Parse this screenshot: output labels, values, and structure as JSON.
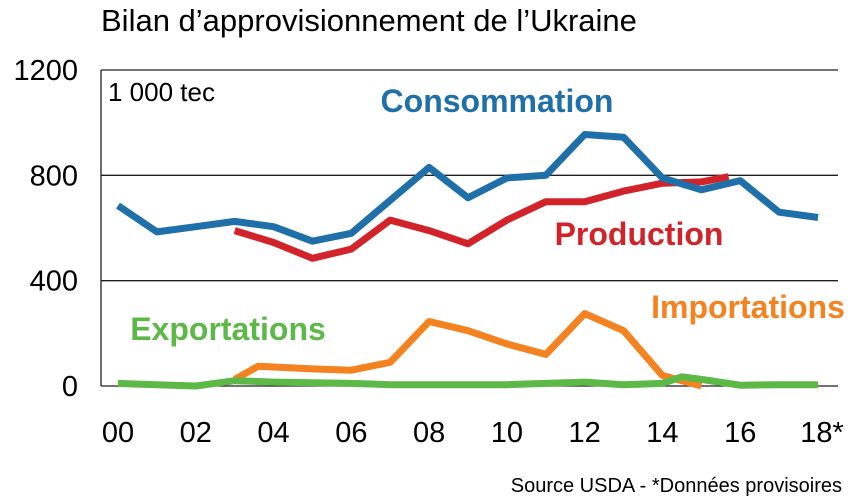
{
  "chart_data": {
    "type": "line",
    "title": "Bilan d’approvisionnement de l’Ukraine",
    "unit": "1 000 tec",
    "source": "Source USDA - *Données provisoires",
    "xlabel": "",
    "ylabel": "",
    "xlim": [
      0,
      18
    ],
    "ylim": [
      0,
      1200
    ],
    "yticks": [
      0,
      400,
      800,
      1200
    ],
    "ytick_labels": [
      "0",
      "400",
      "800",
      "1200"
    ],
    "xticks": [
      0,
      2,
      4,
      6,
      8,
      10,
      12,
      14,
      16,
      18
    ],
    "xtick_labels": [
      "00",
      "02",
      "04",
      "06",
      "08",
      "10",
      "12",
      "14",
      "16",
      "18*"
    ],
    "grid": "horizontal",
    "legend": "inline labels",
    "series": [
      {
        "name": "Consommation",
        "color": "#1f6fa8",
        "points": [
          [
            0,
            685
          ],
          [
            1,
            585
          ],
          [
            2,
            605
          ],
          [
            3,
            625
          ],
          [
            4,
            605
          ],
          [
            5,
            550
          ],
          [
            6,
            580
          ],
          [
            7,
            705
          ],
          [
            8,
            830
          ],
          [
            9,
            715
          ],
          [
            10,
            790
          ],
          [
            11,
            800
          ],
          [
            12,
            955
          ],
          [
            13,
            945
          ],
          [
            14,
            790
          ],
          [
            15,
            745
          ],
          [
            16,
            780
          ],
          [
            17,
            660
          ],
          [
            18,
            640
          ]
        ]
      },
      {
        "name": "Production",
        "color": "#d2232a",
        "points": [
          [
            3,
            590
          ],
          [
            4,
            545
          ],
          [
            5,
            485
          ],
          [
            6,
            520
          ],
          [
            7,
            630
          ],
          [
            8,
            590
          ],
          [
            9,
            540
          ],
          [
            10,
            630
          ],
          [
            11,
            700
          ],
          [
            12,
            700
          ],
          [
            13,
            740
          ],
          [
            14,
            770
          ],
          [
            15,
            775
          ],
          [
            15.7,
            795
          ]
        ]
      },
      {
        "name": "Importations",
        "color": "#f58220",
        "points": [
          [
            3,
            25
          ],
          [
            3.6,
            75
          ],
          [
            5,
            65
          ],
          [
            6,
            60
          ],
          [
            7,
            90
          ],
          [
            8,
            245
          ],
          [
            9,
            210
          ],
          [
            10,
            160
          ],
          [
            11,
            120
          ],
          [
            12,
            275
          ],
          [
            13,
            210
          ],
          [
            14,
            40
          ],
          [
            15,
            0
          ]
        ]
      },
      {
        "name": "Exportations",
        "color": "#5cb847",
        "points": [
          [
            0,
            10
          ],
          [
            1,
            5
          ],
          [
            2,
            0
          ],
          [
            3,
            20
          ],
          [
            4,
            15
          ],
          [
            5,
            12
          ],
          [
            6,
            10
          ],
          [
            7,
            5
          ],
          [
            8,
            5
          ],
          [
            9,
            5
          ],
          [
            10,
            5
          ],
          [
            11,
            10
          ],
          [
            12,
            15
          ],
          [
            13,
            5
          ],
          [
            14,
            10
          ],
          [
            14.5,
            35
          ],
          [
            15,
            25
          ],
          [
            16,
            3
          ],
          [
            17,
            5
          ],
          [
            18,
            5
          ]
        ]
      }
    ]
  }
}
